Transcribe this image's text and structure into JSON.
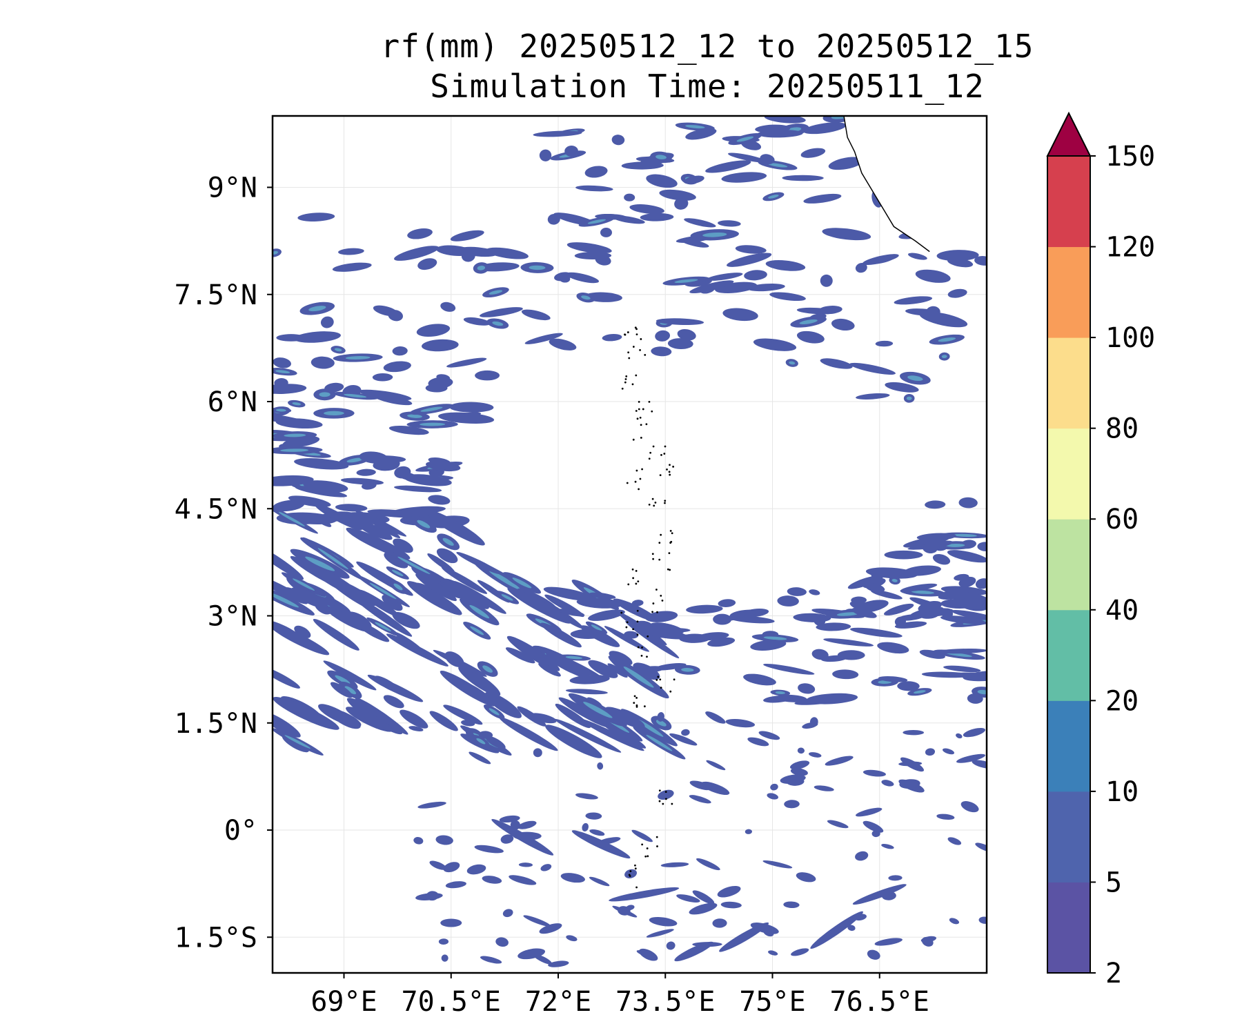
{
  "title": {
    "line1": "rf(mm) 20250512_12 to 20250512_15",
    "line2": "Simulation Time: 20250511_12"
  },
  "map": {
    "lon_range": [
      68.0,
      78.0
    ],
    "lat_range": [
      -2.0,
      10.0
    ],
    "x_ticks": [
      {
        "value": 69.0,
        "label": "69°E"
      },
      {
        "value": 70.5,
        "label": "70.5°E"
      },
      {
        "value": 72.0,
        "label": "72°E"
      },
      {
        "value": 73.5,
        "label": "73.5°E"
      },
      {
        "value": 75.0,
        "label": "75°E"
      },
      {
        "value": 76.5,
        "label": "76.5°E"
      }
    ],
    "y_ticks": [
      {
        "value": 9.0,
        "label": "9°N"
      },
      {
        "value": 7.5,
        "label": "7.5°N"
      },
      {
        "value": 6.0,
        "label": "6°N"
      },
      {
        "value": 4.5,
        "label": "4.5°N"
      },
      {
        "value": 3.0,
        "label": "3°N"
      },
      {
        "value": 1.5,
        "label": "1.5°N"
      },
      {
        "value": 0.0,
        "label": "0°"
      },
      {
        "value": -1.5,
        "label": "1.5°S"
      }
    ],
    "gridlines": true,
    "fill_color": "#4c5aa8",
    "fill_color_light": "#5d9ec4",
    "coastline_color": "#000000"
  },
  "colorbar": {
    "levels": [
      {
        "label": "2"
      },
      {
        "label": "5"
      },
      {
        "label": "10"
      },
      {
        "label": "20"
      },
      {
        "label": "40"
      },
      {
        "label": "60"
      },
      {
        "label": "80"
      },
      {
        "label": "100"
      },
      {
        "label": "120"
      },
      {
        "label": "150"
      }
    ],
    "colors": [
      "#5b53a4",
      "#4f64ad",
      "#3b80b9",
      "#62bea6",
      "#bde3a1",
      "#f3f9ad",
      "#fcdd8c",
      "#f99d59",
      "#d6404e"
    ],
    "extend_color": "#9e0142",
    "extend": "max"
  }
}
